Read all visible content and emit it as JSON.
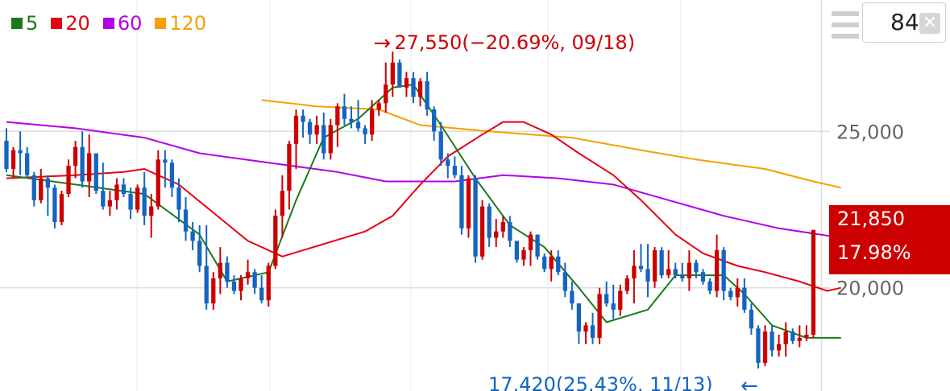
{
  "legend": [
    {
      "label": "5",
      "color": "#1a7a1a"
    },
    {
      "label": "20",
      "color": "#e60012"
    },
    {
      "label": "60",
      "color": "#b400e6"
    },
    {
      "label": "120",
      "color": "#f5a000"
    }
  ],
  "period_input": {
    "value": "84",
    "clear_icon": "close-icon"
  },
  "menu_icon": "hamburger-menu-icon",
  "current_price": {
    "value": "21,850",
    "change": "17.98%"
  },
  "annotations": {
    "high": {
      "text": "27,550(−20.69%, 09/18)",
      "arrow": "→"
    },
    "low": {
      "text": "17,420(25.43%, 11/13)",
      "arrow": "←"
    }
  },
  "chart_data": {
    "type": "candlestick",
    "colors": {
      "up": "#cc0000",
      "down": "#1565c0",
      "ma5": "#1a7a1a",
      "ma20": "#e60012",
      "ma60": "#b400e6",
      "ma120": "#f5a000",
      "grid": "#dddddd"
    },
    "y_ticks": [
      {
        "value": 25000,
        "label": "25,000"
      },
      {
        "value": 20000,
        "label": "20,000"
      }
    ],
    "y_range": [
      16700,
      29200
    ],
    "grid": "horizontal",
    "high": {
      "value": 27550,
      "change": "-20.69%",
      "date": "09/18"
    },
    "low": {
      "value": 17420,
      "change": "25.43%",
      "date": "11/13"
    },
    "candles": [
      [
        24700,
        25100,
        23700,
        23800
      ],
      [
        23800,
        24500,
        23500,
        24400
      ],
      [
        24400,
        25000,
        23600,
        24300
      ],
      [
        24300,
        24500,
        23500,
        23600
      ],
      [
        23600,
        23700,
        22600,
        22800
      ],
      [
        22800,
        23800,
        22700,
        23500
      ],
      [
        23500,
        23600,
        22300,
        23200
      ],
      [
        23200,
        23300,
        21900,
        22100
      ],
      [
        22100,
        23100,
        22000,
        23000
      ],
      [
        23000,
        24100,
        22900,
        23900
      ],
      [
        23900,
        24700,
        23500,
        24500
      ],
      [
        24500,
        25000,
        23200,
        23400
      ],
      [
        23400,
        24900,
        22900,
        24300
      ],
      [
        24300,
        24300,
        23000,
        23100
      ],
      [
        23100,
        24000,
        22500,
        22600
      ],
      [
        22600,
        23100,
        22300,
        22800
      ],
      [
        22800,
        23500,
        22500,
        23300
      ],
      [
        23300,
        23500,
        22900,
        23000
      ],
      [
        23000,
        23200,
        22200,
        22500
      ],
      [
        22500,
        23300,
        22400,
        23200
      ],
      [
        23200,
        23700,
        22000,
        22300
      ],
      [
        22300,
        23000,
        21600,
        22600
      ],
      [
        22600,
        24400,
        22500,
        24100
      ],
      [
        24100,
        24400,
        23200,
        24000
      ],
      [
        24000,
        24100,
        22900,
        23200
      ],
      [
        23200,
        23500,
        22100,
        22500
      ],
      [
        22500,
        22900,
        21500,
        21800
      ],
      [
        21800,
        22100,
        21200,
        21500
      ],
      [
        21500,
        22000,
        20500,
        20700
      ],
      [
        20700,
        22000,
        19300,
        19500
      ],
      [
        19500,
        20500,
        19300,
        20300
      ],
      [
        20300,
        21300,
        19800,
        20800
      ],
      [
        20800,
        21000,
        20000,
        20200
      ],
      [
        20200,
        20400,
        19800,
        19900
      ],
      [
        19900,
        20400,
        19600,
        20300
      ],
      [
        20300,
        20900,
        20100,
        20500
      ],
      [
        20500,
        20600,
        19800,
        20000
      ],
      [
        20000,
        20400,
        19500,
        19600
      ],
      [
        19600,
        20800,
        19400,
        20700
      ],
      [
        20700,
        22500,
        20600,
        22300
      ],
      [
        22300,
        23600,
        21600,
        23100
      ],
      [
        23100,
        24700,
        22500,
        24600
      ],
      [
        24600,
        25700,
        23800,
        25500
      ],
      [
        25500,
        25700,
        24800,
        25300
      ],
      [
        25300,
        25400,
        24600,
        24900
      ],
      [
        24900,
        25500,
        24600,
        25200
      ],
      [
        25200,
        25600,
        24100,
        24300
      ],
      [
        24300,
        25400,
        24100,
        25200
      ],
      [
        25200,
        25900,
        24500,
        25800
      ],
      [
        25800,
        26200,
        25200,
        25400
      ],
      [
        25400,
        25800,
        25100,
        25300
      ],
      [
        25300,
        26000,
        25000,
        25100
      ],
      [
        25100,
        25200,
        24600,
        24900
      ],
      [
        24900,
        26000,
        24700,
        25700
      ],
      [
        25700,
        26000,
        25500,
        25900
      ],
      [
        25900,
        27200,
        25600,
        26500
      ],
      [
        26500,
        27550,
        26100,
        27200
      ],
      [
        27200,
        27300,
        26500,
        26400
      ],
      [
        26400,
        26900,
        26100,
        26700
      ],
      [
        26700,
        26900,
        25900,
        26100
      ],
      [
        26100,
        26700,
        25800,
        26600
      ],
      [
        26600,
        26900,
        25500,
        25700
      ],
      [
        25700,
        25800,
        24700,
        25000
      ],
      [
        25000,
        25300,
        23900,
        24100
      ],
      [
        24100,
        24300,
        23500,
        23900
      ],
      [
        23900,
        24200,
        23500,
        23600
      ],
      [
        23600,
        23900,
        21700,
        21900
      ],
      [
        21900,
        23600,
        21600,
        23500
      ],
      [
        23500,
        23600,
        20800,
        21000
      ],
      [
        21000,
        22800,
        20900,
        22600
      ],
      [
        22600,
        22700,
        21300,
        21600
      ],
      [
        21600,
        22200,
        21300,
        21800
      ],
      [
        21800,
        22300,
        21600,
        22100
      ],
      [
        22100,
        22300,
        21300,
        21500
      ],
      [
        21500,
        21500,
        20800,
        20900
      ],
      [
        20900,
        21300,
        20700,
        21200
      ],
      [
        21200,
        21800,
        20700,
        21700
      ],
      [
        21700,
        21700,
        20900,
        21000
      ],
      [
        21000,
        21100,
        20500,
        20600
      ],
      [
        20600,
        21200,
        20200,
        21000
      ],
      [
        21000,
        21200,
        20400,
        20500
      ],
      [
        20500,
        20800,
        19700,
        19900
      ],
      [
        19900,
        20200,
        19300,
        19500
      ],
      [
        19500,
        19500,
        18200,
        18600
      ],
      [
        18600,
        18900,
        18200,
        18800
      ],
      [
        18800,
        19200,
        18200,
        18400
      ],
      [
        18400,
        20000,
        18200,
        19800
      ],
      [
        19800,
        20200,
        19400,
        19500
      ],
      [
        19500,
        20100,
        19000,
        19300
      ],
      [
        19300,
        20100,
        19100,
        19900
      ],
      [
        19900,
        20400,
        19800,
        20300
      ],
      [
        20300,
        21200,
        19500,
        20700
      ],
      [
        20700,
        21400,
        20500,
        20600
      ],
      [
        20600,
        21400,
        19700,
        20200
      ],
      [
        20200,
        21300,
        20000,
        21200
      ],
      [
        21200,
        21300,
        20300,
        20400
      ],
      [
        20400,
        21200,
        20300,
        20600
      ],
      [
        20600,
        20800,
        20300,
        20400
      ],
      [
        20400,
        20800,
        20200,
        20300
      ],
      [
        20300,
        21200,
        19900,
        20800
      ],
      [
        20800,
        20900,
        20300,
        20500
      ],
      [
        20500,
        20600,
        20100,
        20200
      ],
      [
        20200,
        20300,
        19800,
        19900
      ],
      [
        19900,
        21700,
        19700,
        21200
      ],
      [
        21200,
        21300,
        19600,
        19900
      ],
      [
        19900,
        20000,
        19600,
        19700
      ],
      [
        19700,
        20300,
        19400,
        20000
      ],
      [
        20000,
        20300,
        19200,
        19300
      ],
      [
        19300,
        19500,
        18500,
        18700
      ],
      [
        18700,
        18800,
        17420,
        17600
      ],
      [
        17600,
        18800,
        17500,
        18600
      ],
      [
        18600,
        18800,
        17800,
        18000
      ],
      [
        18000,
        18500,
        17800,
        18200
      ],
      [
        18200,
        18900,
        17800,
        18600
      ],
      [
        18600,
        18700,
        18200,
        18300
      ],
      [
        18300,
        18800,
        18100,
        18400
      ],
      [
        18400,
        18800,
        18300,
        18500
      ],
      [
        18500,
        21850,
        18400,
        21850
      ]
    ],
    "ma5": [
      [
        0,
        23600
      ],
      [
        10,
        23300
      ],
      [
        20,
        23000
      ],
      [
        28,
        21700
      ],
      [
        32,
        20200
      ],
      [
        38,
        20500
      ],
      [
        42,
        22800
      ],
      [
        46,
        24800
      ],
      [
        51,
        25400
      ],
      [
        56,
        26400
      ],
      [
        59,
        26500
      ],
      [
        63,
        25200
      ],
      [
        68,
        23500
      ],
      [
        73,
        22000
      ],
      [
        78,
        21300
      ],
      [
        83,
        20000
      ],
      [
        87,
        18900
      ],
      [
        93,
        19300
      ],
      [
        97,
        20400
      ],
      [
        104,
        20400
      ],
      [
        107,
        19800
      ],
      [
        111,
        18800
      ],
      [
        116,
        18400
      ],
      [
        121,
        18400
      ]
    ],
    "ma20": [
      [
        0,
        23500
      ],
      [
        10,
        23600
      ],
      [
        17,
        23700
      ],
      [
        20,
        23800
      ],
      [
        25,
        23300
      ],
      [
        30,
        22400
      ],
      [
        35,
        21500
      ],
      [
        40,
        21000
      ],
      [
        46,
        21400
      ],
      [
        52,
        21800
      ],
      [
        56,
        22300
      ],
      [
        60,
        23300
      ],
      [
        64,
        24200
      ],
      [
        69,
        24900
      ],
      [
        72,
        25300
      ],
      [
        75,
        25300
      ],
      [
        79,
        24900
      ],
      [
        83,
        24300
      ],
      [
        88,
        23600
      ],
      [
        92,
        22800
      ],
      [
        97,
        21700
      ],
      [
        101,
        21100
      ],
      [
        106,
        20700
      ],
      [
        110,
        20500
      ],
      [
        115,
        20200
      ],
      [
        119,
        19900
      ],
      [
        121,
        20000
      ]
    ],
    "ma60": [
      [
        0,
        25300
      ],
      [
        10,
        25100
      ],
      [
        20,
        24800
      ],
      [
        28,
        24300
      ],
      [
        38,
        24000
      ],
      [
        48,
        23700
      ],
      [
        55,
        23400
      ],
      [
        65,
        23400
      ],
      [
        72,
        23600
      ],
      [
        80,
        23500
      ],
      [
        88,
        23300
      ],
      [
        96,
        22800
      ],
      [
        104,
        22300
      ],
      [
        112,
        21900
      ],
      [
        121,
        21600
      ]
    ],
    "ma120": [
      [
        37,
        26000
      ],
      [
        45,
        25800
      ],
      [
        54,
        25700
      ],
      [
        60,
        25200
      ],
      [
        70,
        25000
      ],
      [
        82,
        24800
      ],
      [
        92,
        24400
      ],
      [
        100,
        24100
      ],
      [
        110,
        23800
      ],
      [
        117,
        23400
      ],
      [
        121,
        23200
      ]
    ]
  }
}
